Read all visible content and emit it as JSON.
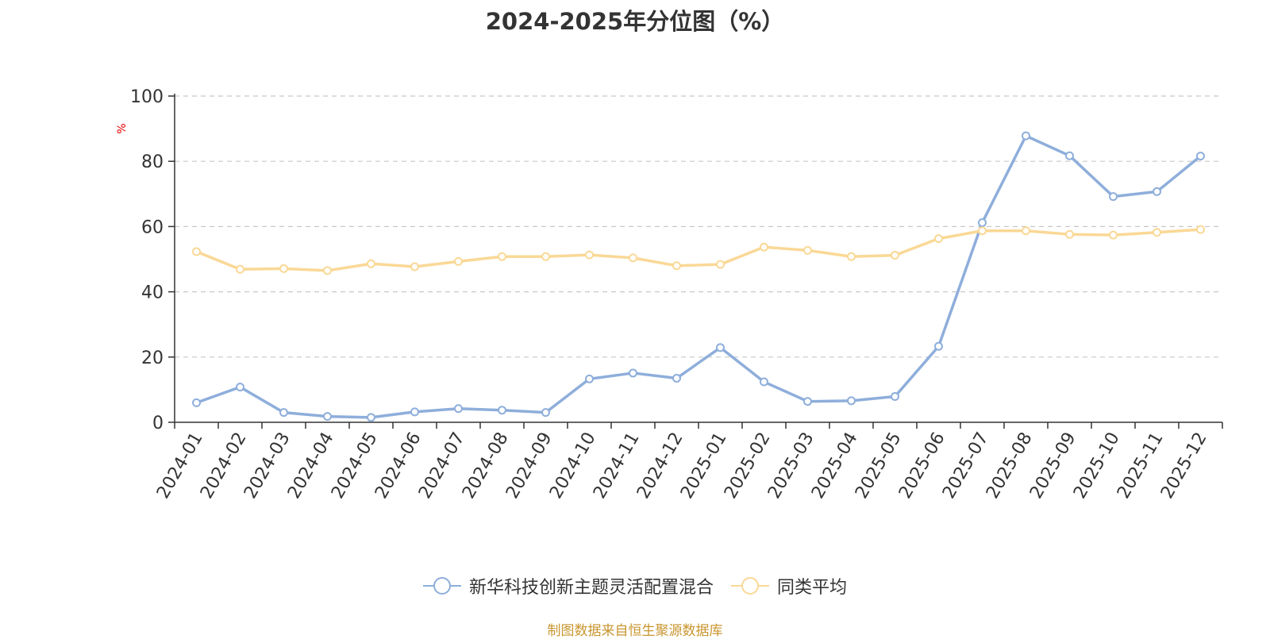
{
  "chart_data": {
    "type": "line",
    "title": "2024-2025年分位图（%）",
    "ylabel": "%",
    "xlabel": "",
    "ylim": [
      0,
      100
    ],
    "yticks": [
      0,
      20,
      40,
      60,
      80,
      100
    ],
    "grid": true,
    "legend_position": "bottom",
    "categories": [
      "2024-01",
      "2024-02",
      "2024-03",
      "2024-04",
      "2024-05",
      "2024-06",
      "2024-07",
      "2024-08",
      "2024-09",
      "2024-10",
      "2024-11",
      "2024-12",
      "2025-01",
      "2025-02",
      "2025-03",
      "2025-04",
      "2025-05",
      "2025-06",
      "2025-07",
      "2025-08",
      "2025-09",
      "2025-10",
      "2025-11",
      "2025-12"
    ],
    "series": [
      {
        "name": "新华科技创新主题灵活配置混合",
        "color": "#8eaedb",
        "values": [
          6.0,
          10.8,
          3.0,
          1.8,
          1.5,
          3.2,
          4.2,
          3.7,
          3.0,
          13.3,
          15.1,
          13.5,
          22.9,
          12.4,
          6.4,
          6.6,
          7.9,
          23.3,
          61.2,
          87.8,
          81.7,
          69.2,
          70.7,
          81.6
        ]
      },
      {
        "name": "同类平均",
        "color": "#fad896",
        "values": [
          52.3,
          46.9,
          47.1,
          46.5,
          48.6,
          47.7,
          49.3,
          50.8,
          50.8,
          51.3,
          50.4,
          48.0,
          48.4,
          53.7,
          52.7,
          50.8,
          51.2,
          56.3,
          58.7,
          58.7,
          57.6,
          57.4,
          58.2,
          59.1
        ]
      }
    ]
  },
  "source_note": "制图数据来自恒生聚源数据库"
}
